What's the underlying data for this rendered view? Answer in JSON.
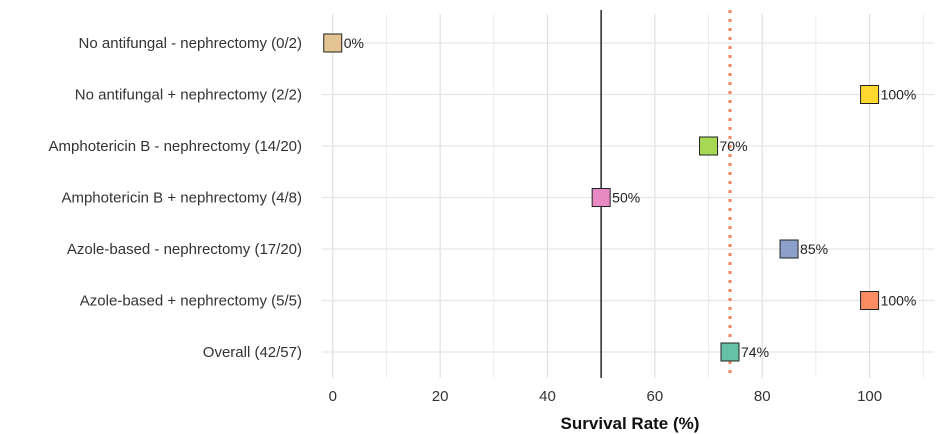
{
  "chart_data": {
    "type": "scatter",
    "title": "",
    "xlabel": "Survival Rate (%)",
    "ylabel": "",
    "xlim": [
      -2,
      112
    ],
    "xticks": [
      0,
      20,
      40,
      60,
      80,
      100
    ],
    "grid": true,
    "legend": "none",
    "reference_lines": [
      {
        "name": "",
        "x": 50,
        "style": "solid",
        "color": "#333333"
      },
      {
        "name": "",
        "x": 74,
        "style": "dotted",
        "color": "#F4845F"
      }
    ],
    "categories": [
      "No antifungal - nephrectomy (0/2)",
      "No antifungal + nephrectomy (2/2)",
      "Amphotericin B - nephrectomy (14/20)",
      "Amphotericin B + nephrectomy (4/8)",
      "Azole-based - nephrectomy (17/20)",
      "Azole-based + nephrectomy (5/5)",
      "Overall (42/57)"
    ],
    "values": [
      0,
      100,
      70,
      50,
      85,
      100,
      74
    ],
    "labels": [
      "0%",
      "100%",
      "70%",
      "50%",
      "85%",
      "100%",
      "74%"
    ],
    "colors": [
      "#E5C494",
      "#FFD92F",
      "#A6D854",
      "#E78AC3",
      "#8DA0CB",
      "#FC8D62",
      "#66C2A5"
    ]
  }
}
